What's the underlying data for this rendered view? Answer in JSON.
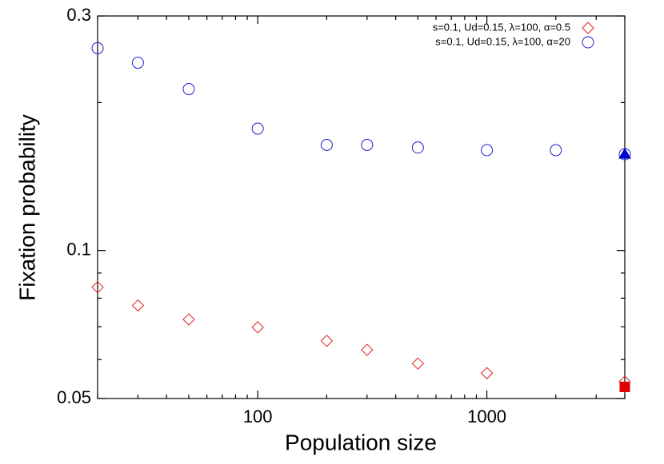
{
  "chart_data": {
    "type": "scatter",
    "xlabel": "Population size",
    "ylabel": "Fixation probability",
    "xlog": true,
    "ylog": true,
    "xlim": [
      20,
      4000
    ],
    "ylim": [
      0.05,
      0.3
    ],
    "xticks": [
      100,
      1000
    ],
    "yticks": [
      0.05,
      0.1,
      0.3
    ],
    "xminor_ticks": [
      20,
      30,
      40,
      50,
      60,
      70,
      80,
      90,
      200,
      300,
      400,
      500,
      600,
      700,
      800,
      900,
      2000,
      3000,
      4000
    ],
    "yminor_ticks": [
      0.06,
      0.07,
      0.08,
      0.09,
      0.2
    ],
    "legend": "top-right",
    "series": [
      {
        "name": "s=0.1, Ud=0.15, λ=100, α=0.5",
        "color": "#e41a1c",
        "marker": "diamond",
        "filled": false,
        "x": [
          20,
          30,
          50,
          100,
          200,
          300,
          500,
          1000,
          4000
        ],
        "values": [
          0.0842,
          0.0773,
          0.0724,
          0.0698,
          0.0655,
          0.0628,
          0.0589,
          0.0563,
          0.0541
        ]
      },
      {
        "name": "s=0.1, Ud=0.15, λ=100, α=20",
        "color": "#1f1fcc",
        "marker": "circle",
        "filled": false,
        "x": [
          20,
          30,
          50,
          100,
          200,
          300,
          500,
          1000,
          2000,
          4000
        ],
        "values": [
          0.258,
          0.241,
          0.213,
          0.177,
          0.164,
          0.164,
          0.162,
          0.16,
          0.16,
          0.157
        ]
      },
      {
        "color": "#0000cc",
        "marker": "triangle",
        "filled": true,
        "x": [
          4000
        ],
        "values": [
          0.157
        ]
      },
      {
        "color": "#e00000",
        "marker": "square",
        "filled": true,
        "x": [
          4000
        ],
        "values": [
          0.0528
        ]
      }
    ]
  }
}
